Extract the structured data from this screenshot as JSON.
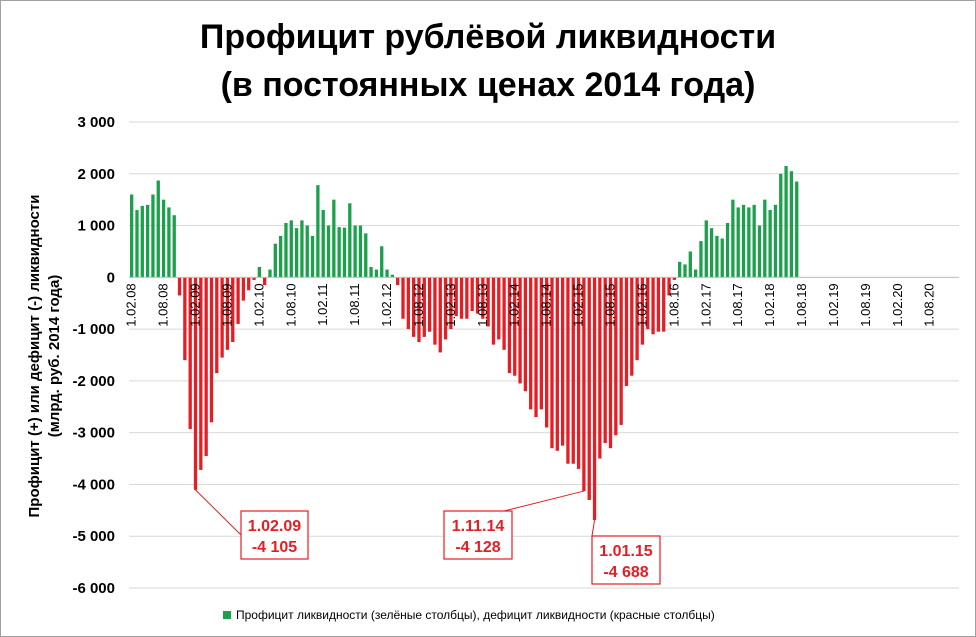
{
  "chart_data": {
    "type": "bar",
    "title": [
      "Профицит рублёвой ликвидности",
      "(в постоянных ценах 2014 года)"
    ],
    "ylabel": [
      "Профицит (+) или дефицит (-) ликвидности",
      "(млрд. руб. 2014 года)"
    ],
    "ylim": [
      -6000,
      3000
    ],
    "yticks": [
      3000,
      2000,
      1000,
      0,
      -1000,
      -2000,
      -3000,
      -4000,
      -5000,
      -6000
    ],
    "ytick_labels": [
      "3 000",
      "2 000",
      "1 000",
      "0",
      "-1 000",
      "-2 000",
      "-3 000",
      "-4 000",
      "-5 000",
      "-6 000"
    ],
    "xtick_labels": [
      "1.02.08",
      "1.08.08",
      "1.02.09",
      "1.08.09",
      "1.02.10",
      "1.08.10",
      "1.02.11",
      "1.08.11",
      "1.02.12",
      "1.08.12",
      "1.02.13",
      "1.08.13",
      "1.02.14",
      "1.08.14",
      "1.02.15",
      "1.08.15",
      "1.02.16",
      "1.08.16",
      "1.02.17",
      "1.08.17",
      "1.02.18",
      "1.08.18",
      "1.02.19",
      "1.08.19",
      "1.02.20",
      "1.08.20"
    ],
    "grid": true,
    "colors": {
      "surplus": "#1ca04b",
      "deficit": "#e31e24"
    },
    "legend": {
      "position": "bottom",
      "text": "Профицит ликвидности (зелёные столбцы), дефицит ликвидности (красные столбцы)"
    },
    "start_month": "1.02.08",
    "values": [
      1600,
      1300,
      1380,
      1400,
      1600,
      1870,
      1500,
      1350,
      1200,
      -350,
      -1600,
      -2930,
      -4105,
      -3720,
      -3450,
      -2800,
      -1850,
      -1550,
      -1400,
      -1250,
      -900,
      -450,
      -250,
      -50,
      200,
      -150,
      150,
      650,
      800,
      1050,
      1100,
      950,
      1100,
      1000,
      800,
      1780,
      1300,
      1000,
      1500,
      970,
      960,
      1430,
      1000,
      1000,
      850,
      200,
      150,
      600,
      150,
      50,
      -150,
      -800,
      -1000,
      -1150,
      -1250,
      -1150,
      -1050,
      -1300,
      -1450,
      -1200,
      -1000,
      -750,
      -800,
      -800,
      -650,
      -700,
      -800,
      -950,
      -1300,
      -1200,
      -1400,
      -1850,
      -1900,
      -2050,
      -2200,
      -2550,
      -2700,
      -2550,
      -2900,
      -3300,
      -3350,
      -3250,
      -3600,
      -3600,
      -3700,
      -4128,
      -4300,
      -4688,
      -3500,
      -3200,
      -3300,
      -3050,
      -2850,
      -2100,
      -1900,
      -1600,
      -1300,
      -1000,
      -1100,
      -1050,
      -1050,
      -350,
      -50,
      300,
      250,
      500,
      150,
      700,
      1100,
      950,
      800,
      750,
      1050,
      1500,
      1350,
      1400,
      1350,
      1400,
      1000,
      1500,
      1300,
      1400,
      2000,
      2150,
      2050,
      1850
    ],
    "annotations": [
      {
        "date": "1.02.09",
        "value_label": "-4 105",
        "bar_index": 12
      },
      {
        "date": "1.11.14",
        "value_label": "-4 128",
        "bar_index": 85
      },
      {
        "date": "1.01.15",
        "value_label": "-4 688",
        "bar_index": 87
      }
    ]
  }
}
